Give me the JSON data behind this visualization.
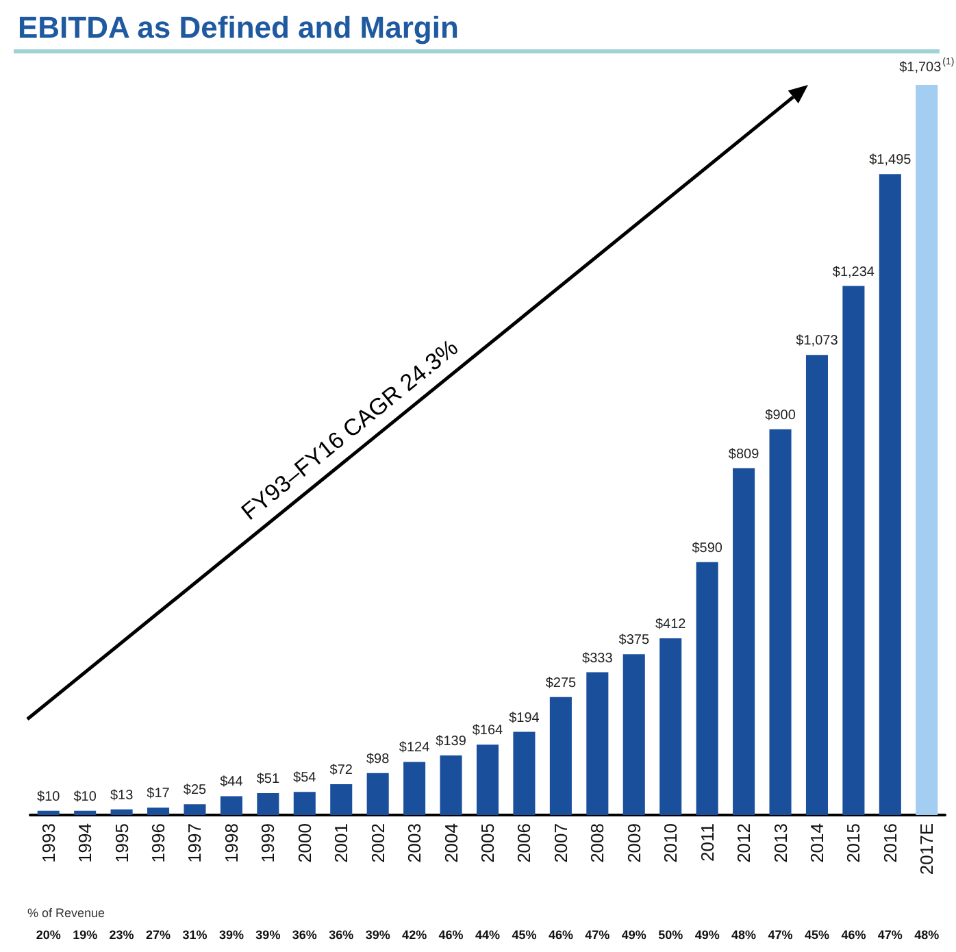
{
  "chart_data": {
    "type": "bar",
    "title": "EBITDA as Defined and Margin",
    "categories": [
      "1993",
      "1994",
      "1995",
      "1996",
      "1997",
      "1998",
      "1999",
      "2000",
      "2001",
      "2002",
      "2003",
      "2004",
      "2005",
      "2006",
      "2007",
      "2008",
      "2009",
      "2010",
      "2011",
      "2012",
      "2013",
      "2014",
      "2015",
      "2016",
      "2017E"
    ],
    "values": [
      10,
      10,
      13,
      17,
      25,
      44,
      51,
      54,
      72,
      98,
      124,
      139,
      164,
      194,
      275,
      333,
      375,
      412,
      590,
      809,
      900,
      1073,
      1234,
      1495,
      1703
    ],
    "value_labels": [
      "$10",
      "$10",
      "$13",
      "$17",
      "$25",
      "$44",
      "$51",
      "$54",
      "$72",
      "$98",
      "$124",
      "$139",
      "$164",
      "$194",
      "$275",
      "$333",
      "$375",
      "$412",
      "$590",
      "$809",
      "$900",
      "$1,073",
      "$1,234",
      "$1,495",
      "$1,703$^{(1)}$"
    ],
    "colors": [
      "#1a4f9c",
      "#1a4f9c",
      "#1a4f9c",
      "#1a4f9c",
      "#1a4f9c",
      "#1a4f9c",
      "#1a4f9c",
      "#1a4f9c",
      "#1a4f9c",
      "#1a4f9c",
      "#1a4f9c",
      "#1a4f9c",
      "#1a4f9c",
      "#1a4f9c",
      "#1a4f9c",
      "#1a4f9c",
      "#1a4f9c",
      "#1a4f9c",
      "#1a4f9c",
      "#1a4f9c",
      "#1a4f9c",
      "#1a4f9c",
      "#1a4f9c",
      "#1a4f9c",
      "#a4cdf2"
    ],
    "annotations": [
      "FY93–FY16 CAGR 24.3%",
      "% of Revenue",
      "20%",
      "19%",
      "23%",
      "27%",
      "31%",
      "39%",
      "39%",
      "36%",
      "36%",
      "39%",
      "42%",
      "46%",
      "44%",
      "45%",
      "46%",
      "47%",
      "49%",
      "50%",
      "49%",
      "48%",
      "47%",
      "45%",
      "46%",
      "47%",
      "48%"
    ],
    "grid": false
  }
}
